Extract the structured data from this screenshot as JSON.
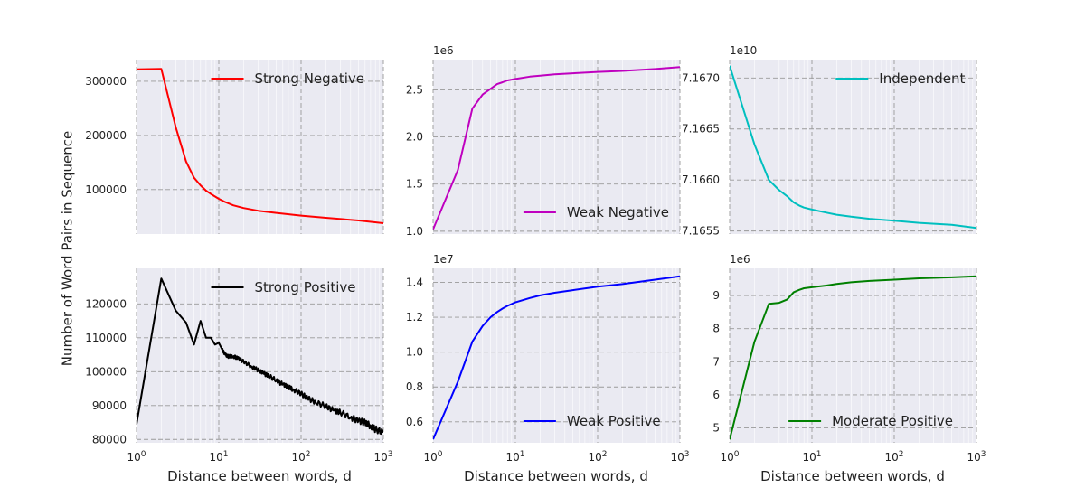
{
  "figure": {
    "ylabel": "Number of Word Pairs in Sequence",
    "xlabel": "Distance between words, d",
    "x_tick_labels": [
      {
        "base": "10",
        "exp": "0"
      },
      {
        "base": "10",
        "exp": "1"
      },
      {
        "base": "10",
        "exp": "2"
      },
      {
        "base": "10",
        "exp": "3"
      }
    ]
  },
  "chart_data": [
    {
      "type": "line",
      "series": [
        {
          "name": "Strong Negative",
          "color": "#ff0000",
          "x": [
            1,
            2,
            3,
            4,
            5,
            6,
            7,
            8,
            10,
            12,
            15,
            20,
            30,
            50,
            100,
            200,
            500,
            1000
          ],
          "values": [
            322000,
            323000,
            215000,
            152000,
            122000,
            108000,
            98000,
            92000,
            83000,
            77000,
            71000,
            66000,
            61000,
            57000,
            52000,
            48000,
            43000,
            38000
          ]
        }
      ],
      "xscale": "log",
      "xlim": [
        1,
        1000
      ],
      "ylim": [
        18000,
        340000
      ],
      "y_ticks": [
        100000,
        200000,
        300000
      ],
      "y_tick_labels": [
        "100000",
        "200000",
        "300000"
      ],
      "offset_text": "",
      "legend": "top-right",
      "grid": true
    },
    {
      "type": "line",
      "series": [
        {
          "name": "Weak Negative",
          "color": "#bf00bf",
          "x": [
            1,
            2,
            3,
            4,
            5,
            6,
            7,
            8,
            10,
            15,
            20,
            30,
            50,
            100,
            200,
            500,
            1000
          ],
          "values": [
            1.02,
            1.65,
            2.3,
            2.45,
            2.51,
            2.56,
            2.58,
            2.6,
            2.615,
            2.64,
            2.65,
            2.665,
            2.675,
            2.69,
            2.7,
            2.72,
            2.74
          ],
          "scale": 1000000
        }
      ],
      "xscale": "log",
      "xlim": [
        1,
        1000
      ],
      "ylim": [
        0.97,
        2.82
      ],
      "y_ticks": [
        1.0,
        1.5,
        2.0,
        2.5
      ],
      "y_tick_labels": [
        "1.0",
        "1.5",
        "2.0",
        "2.5"
      ],
      "offset_text": "1e6",
      "legend": "bottom-right",
      "grid": true
    },
    {
      "type": "line",
      "series": [
        {
          "name": "Independent",
          "color": "#00bfbf",
          "x": [
            1,
            2,
            3,
            4,
            5,
            6,
            7,
            8,
            10,
            15,
            20,
            30,
            50,
            100,
            200,
            500,
            1000
          ],
          "values": [
            7.16712,
            7.16635,
            7.166,
            7.1659,
            7.16584,
            7.16578,
            7.16575,
            7.16573,
            7.16571,
            7.16568,
            7.16566,
            7.16564,
            7.16562,
            7.1656,
            7.16558,
            7.16556,
            7.16553
          ],
          "scale": 10000000000
        }
      ],
      "xscale": "log",
      "xlim": [
        1,
        1000
      ],
      "ylim": [
        7.16547,
        7.16718
      ],
      "y_ticks": [
        7.1655,
        7.166,
        7.1665,
        7.167
      ],
      "y_tick_labels": [
        "7.1655",
        "7.1660",
        "7.1665",
        "7.1670"
      ],
      "offset_text": "1e10",
      "legend": "top-right",
      "grid": true
    },
    {
      "type": "line",
      "series": [
        {
          "name": "Strong Positive",
          "color": "#000000",
          "x": [
            1,
            2,
            3,
            4,
            5,
            6,
            7,
            8,
            9,
            10,
            11,
            12,
            13,
            15,
            17,
            20,
            25,
            30,
            35,
            40,
            50,
            60,
            70,
            80,
            100,
            120,
            150,
            200,
            250,
            300,
            400,
            500,
            600,
            700,
            800,
            1000
          ],
          "values": [
            84500,
            127500,
            118000,
            114500,
            108000,
            115000,
            110000,
            110000,
            108000,
            108500,
            106500,
            105000,
            104500,
            104500,
            104000,
            103000,
            101500,
            100500,
            99500,
            98800,
            97500,
            96200,
            95500,
            94800,
            93500,
            92200,
            91000,
            89800,
            88500,
            88000,
            86500,
            85500,
            85000,
            84000,
            83000,
            82000
          ],
          "noise": true
        }
      ],
      "xscale": "log",
      "xlim": [
        1,
        1000
      ],
      "ylim": [
        79000,
        130500
      ],
      "y_ticks": [
        80000,
        90000,
        100000,
        110000,
        120000
      ],
      "y_tick_labels": [
        "80000",
        "90000",
        "100000",
        "110000",
        "120000"
      ],
      "offset_text": "",
      "legend": "top-right",
      "grid": true
    },
    {
      "type": "line",
      "series": [
        {
          "name": "Weak Positive",
          "color": "#0000ff",
          "x": [
            1,
            2,
            3,
            4,
            5,
            6,
            7,
            8,
            10,
            15,
            20,
            30,
            50,
            100,
            200,
            500,
            1000
          ],
          "values": [
            0.5,
            0.83,
            1.06,
            1.15,
            1.2,
            1.23,
            1.25,
            1.265,
            1.285,
            1.31,
            1.325,
            1.34,
            1.355,
            1.375,
            1.39,
            1.415,
            1.435
          ],
          "scale": 10000000
        }
      ],
      "xscale": "log",
      "xlim": [
        1,
        1000
      ],
      "ylim": [
        0.48,
        1.48
      ],
      "y_ticks": [
        0.6,
        0.8,
        1.0,
        1.2,
        1.4
      ],
      "y_tick_labels": [
        "0.6",
        "0.8",
        "1.0",
        "1.2",
        "1.4"
      ],
      "offset_text": "1e7",
      "legend": "bottom-right",
      "grid": true
    },
    {
      "type": "line",
      "series": [
        {
          "name": "Moderate Positive",
          "color": "#008000",
          "x": [
            1,
            2,
            3,
            4,
            5,
            6,
            7,
            8,
            10,
            15,
            20,
            30,
            50,
            100,
            200,
            500,
            1000
          ],
          "values": [
            4.65,
            7.6,
            8.75,
            8.78,
            8.88,
            9.1,
            9.17,
            9.22,
            9.25,
            9.3,
            9.35,
            9.4,
            9.44,
            9.48,
            9.52,
            9.55,
            9.58
          ],
          "scale": 1000000
        }
      ],
      "xscale": "log",
      "xlim": [
        1,
        1000
      ],
      "ylim": [
        4.55,
        9.82
      ],
      "y_ticks": [
        5,
        6,
        7,
        8,
        9
      ],
      "y_tick_labels": [
        "5",
        "6",
        "7",
        "8",
        "9"
      ],
      "offset_text": "1e6",
      "legend": "bottom-right",
      "grid": true
    }
  ]
}
